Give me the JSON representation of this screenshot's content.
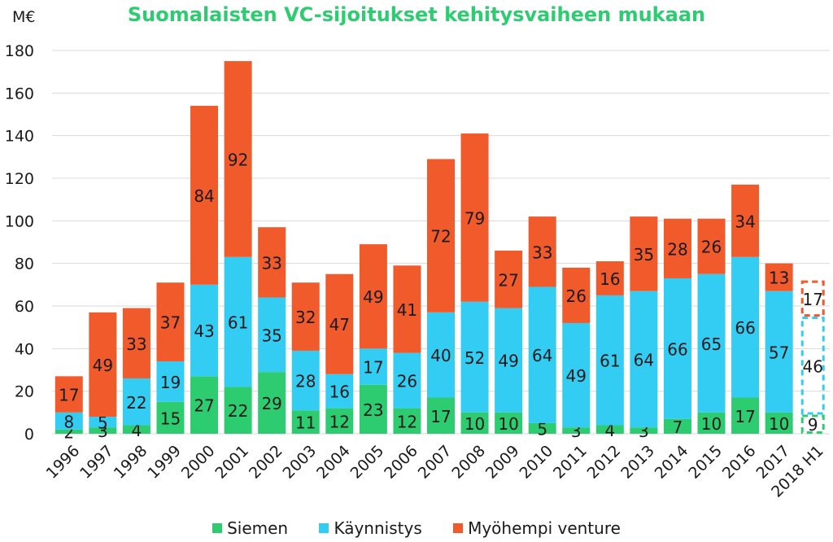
{
  "chart_data": {
    "type": "bar",
    "stacked": true,
    "title": "Suomalaisten VC-sijoitukset kehitysvaiheen mukaan",
    "ylabel": "M€",
    "xlabel": "",
    "ylim": [
      0,
      180
    ],
    "yticks": [
      0,
      20,
      40,
      60,
      80,
      100,
      120,
      140,
      160,
      180
    ],
    "grid": true,
    "legend_position": "bottom",
    "categories": [
      "1996",
      "1997",
      "1998",
      "1999",
      "2000",
      "2001",
      "2002",
      "2003",
      "2004",
      "2005",
      "2006",
      "2007",
      "2008",
      "2009",
      "2010",
      "2011",
      "2012",
      "2013",
      "2014",
      "2015",
      "2016",
      "2017",
      "2018 H1"
    ],
    "series": [
      {
        "name": "Siemen",
        "color": "#2ecc71",
        "values": [
          2,
          3,
          4,
          15,
          27,
          22,
          29,
          11,
          12,
          23,
          12,
          17,
          10,
          10,
          5,
          3,
          4,
          3,
          7,
          10,
          17,
          10,
          9
        ]
      },
      {
        "name": "Käynnistys",
        "color": "#33ccf2",
        "values": [
          8,
          5,
          22,
          19,
          43,
          61,
          35,
          28,
          16,
          17,
          26,
          40,
          52,
          49,
          64,
          49,
          61,
          64,
          66,
          65,
          66,
          57,
          46
        ]
      },
      {
        "name": "Myöhempi venture",
        "color": "#f15a2b",
        "values": [
          17,
          49,
          33,
          37,
          84,
          92,
          33,
          32,
          47,
          49,
          41,
          72,
          79,
          27,
          33,
          26,
          16,
          35,
          28,
          26,
          34,
          13,
          17
        ]
      }
    ],
    "dashed_categories": [
      "2018 H1"
    ],
    "title_color": "#2ecc71"
  }
}
